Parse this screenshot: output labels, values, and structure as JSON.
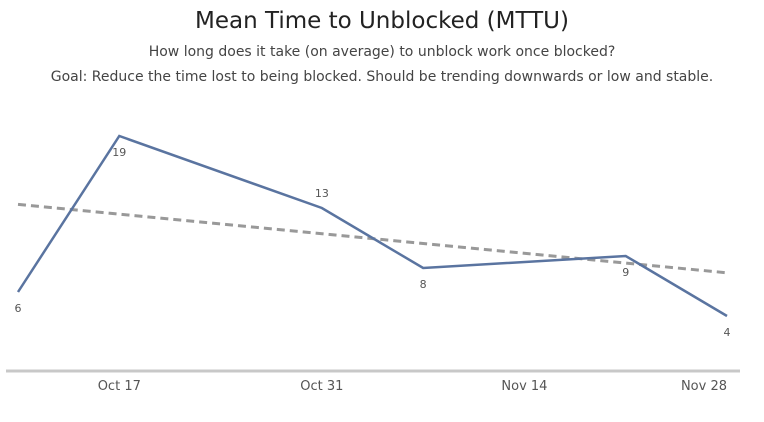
{
  "chart_data": {
    "type": "line",
    "title": "Mean Time to Unblocked (MTTU)",
    "subtitle": "How long does it take (on average) to unblock work once blocked?",
    "goal": "Goal: Reduce the time lost to being blocked. Should be trending downwards or low and stable.",
    "x_tick_labels": [
      "Oct 17",
      "Oct 31",
      "Nov 14",
      "Nov 28"
    ],
    "series": [
      {
        "values": [
          {
            "x": "Oct 10",
            "y": 6
          },
          {
            "x": "Oct 17",
            "y": 19
          },
          {
            "x": "Oct 31",
            "y": 13
          },
          {
            "x": "Nov 7",
            "y": 8
          },
          {
            "x": "Nov 21",
            "y": 9
          },
          {
            "x": "Nov 28",
            "y": 4
          }
        ],
        "data_labels": true,
        "color": "#5a74a0"
      }
    ],
    "trendline": {
      "style": "dashed",
      "color": "#999999",
      "start": {
        "x": "Oct 10",
        "y": 13.3
      },
      "end": {
        "x": "Nov 28",
        "y": 7.6
      }
    },
    "ylim": [
      0,
      21
    ],
    "grid": false,
    "legend": "none"
  }
}
